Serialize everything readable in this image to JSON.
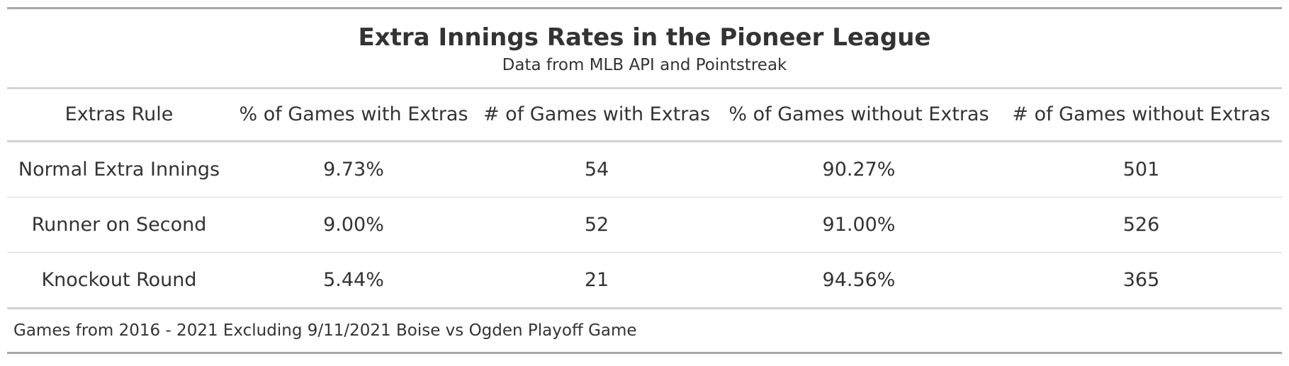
{
  "chart_data": {
    "type": "table",
    "title": "Extra Innings Rates in the Pioneer League",
    "subtitle": "Data from MLB API and Pointstreak",
    "columns": [
      "Extras Rule",
      "% of Games with Extras",
      "# of Games with Extras",
      "% of Games without Extras",
      "# of Games without Extras"
    ],
    "rows": [
      [
        "Normal Extra Innings",
        "9.73%",
        "54",
        "90.27%",
        "501"
      ],
      [
        "Runner on Second",
        "9.00%",
        "52",
        "91.00%",
        "526"
      ],
      [
        "Knockout Round",
        "5.44%",
        "21",
        "94.56%",
        "365"
      ]
    ],
    "footnote": "Games from 2016 - 2021 Excluding 9/11/2021 Boise vs Ogden Playoff Game"
  }
}
